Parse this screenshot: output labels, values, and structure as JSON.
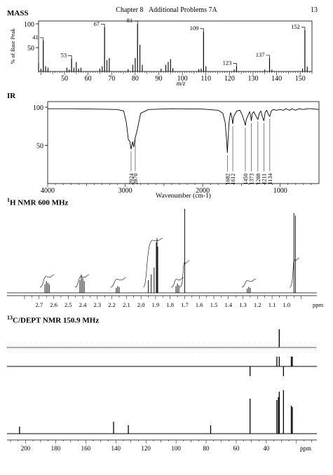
{
  "header": {
    "chapter": "Chapter 8",
    "title": "Additional Problems 7A",
    "page": "13"
  },
  "sections": {
    "mass": "MASS",
    "ir": "IR",
    "hnmr_sup": "1",
    "hnmr": "H NMR 600 MHz",
    "cnmr_sup": "13",
    "cnmr": "C/DEPT NMR 150.9 MHz"
  },
  "chart_data": [
    {
      "type": "bar",
      "name": "mass-spectrum",
      "xlabel": "m/z",
      "ylabel": "% of Base Peak",
      "xlim": [
        39,
        155
      ],
      "ylim": [
        0,
        100
      ],
      "xticks": [
        50,
        60,
        70,
        80,
        90,
        100,
        110,
        120,
        130,
        140,
        150
      ],
      "yticks": [
        50,
        100
      ],
      "labeled_peaks": [
        {
          "x": 41,
          "y": 65,
          "label": "41"
        },
        {
          "x": 53,
          "y": 27,
          "label": "53"
        },
        {
          "x": 67,
          "y": 93,
          "label": "67"
        },
        {
          "x": 81,
          "y": 100,
          "label": "81"
        },
        {
          "x": 109,
          "y": 84,
          "label": "109"
        },
        {
          "x": 123,
          "y": 11,
          "label": "123"
        },
        {
          "x": 137,
          "y": 28,
          "label": "137"
        },
        {
          "x": 152,
          "y": 87,
          "label": "152"
        }
      ],
      "minor_peaks": [
        [
          39,
          18
        ],
        [
          40,
          6
        ],
        [
          42,
          11
        ],
        [
          43,
          8
        ],
        [
          51,
          8
        ],
        [
          52,
          4
        ],
        [
          54,
          8
        ],
        [
          55,
          20
        ],
        [
          56,
          6
        ],
        [
          57,
          8
        ],
        [
          65,
          6
        ],
        [
          66,
          11
        ],
        [
          68,
          24
        ],
        [
          69,
          28
        ],
        [
          77,
          5
        ],
        [
          79,
          14
        ],
        [
          80,
          28
        ],
        [
          82,
          56
        ],
        [
          83,
          14
        ],
        [
          91,
          6
        ],
        [
          93,
          14
        ],
        [
          94,
          20
        ],
        [
          95,
          26
        ],
        [
          96,
          7
        ],
        [
          107,
          5
        ],
        [
          108,
          6
        ],
        [
          110,
          11
        ],
        [
          122,
          4
        ],
        [
          135,
          4
        ],
        [
          138,
          4
        ],
        [
          151,
          6
        ],
        [
          153,
          10
        ]
      ]
    },
    {
      "type": "line",
      "name": "ir-spectrum",
      "xlabel": "Wavenumber (cm-1)",
      "xlim": [
        4000,
        500
      ],
      "ylim": [
        0,
        100
      ],
      "xticks": [
        4000,
        3000,
        2000,
        1000
      ],
      "yticks": [
        50,
        100
      ],
      "peak_labels": [
        "2924",
        "2870",
        "1682",
        "1612",
        "1450",
        "1373",
        "1288",
        "1211",
        "1134"
      ],
      "points": [
        [
          4000,
          98
        ],
        [
          3700,
          98
        ],
        [
          3400,
          97.5
        ],
        [
          3100,
          97
        ],
        [
          3020,
          95
        ],
        [
          2985,
          80
        ],
        [
          2960,
          58
        ],
        [
          2940,
          55
        ],
        [
          2924,
          45
        ],
        [
          2905,
          55
        ],
        [
          2890,
          48
        ],
        [
          2870,
          60
        ],
        [
          2850,
          68
        ],
        [
          2800,
          92
        ],
        [
          2700,
          97
        ],
        [
          2400,
          98
        ],
        [
          2000,
          97.5
        ],
        [
          1800,
          96
        ],
        [
          1740,
          92
        ],
        [
          1710,
          80
        ],
        [
          1690,
          55
        ],
        [
          1682,
          40
        ],
        [
          1674,
          55
        ],
        [
          1660,
          80
        ],
        [
          1640,
          93
        ],
        [
          1625,
          88
        ],
        [
          1612,
          78
        ],
        [
          1600,
          88
        ],
        [
          1560,
          95
        ],
        [
          1520,
          96
        ],
        [
          1490,
          90
        ],
        [
          1465,
          82
        ],
        [
          1450,
          76
        ],
        [
          1438,
          84
        ],
        [
          1420,
          88
        ],
        [
          1395,
          94
        ],
        [
          1380,
          88
        ],
        [
          1373,
          82
        ],
        [
          1360,
          92
        ],
        [
          1340,
          94
        ],
        [
          1320,
          90
        ],
        [
          1300,
          86
        ],
        [
          1288,
          84
        ],
        [
          1270,
          92
        ],
        [
          1250,
          95
        ],
        [
          1232,
          88
        ],
        [
          1211,
          82
        ],
        [
          1195,
          93
        ],
        [
          1175,
          96
        ],
        [
          1150,
          90
        ],
        [
          1134,
          88
        ],
        [
          1115,
          95
        ],
        [
          1090,
          97
        ],
        [
          1050,
          96
        ],
        [
          1000,
          97
        ],
        [
          960,
          96
        ],
        [
          930,
          98
        ],
        [
          880,
          96
        ],
        [
          850,
          98
        ],
        [
          800,
          96
        ],
        [
          760,
          98
        ],
        [
          700,
          97
        ],
        [
          650,
          98
        ],
        [
          600,
          98
        ],
        [
          500,
          97
        ]
      ]
    },
    {
      "type": "line",
      "name": "h-nmr",
      "xlabel": "ppm",
      "xlim": [
        2.8,
        0.85
      ],
      "xticks": [
        2.7,
        2.6,
        2.5,
        2.4,
        2.3,
        2.2,
        2.1,
        2.0,
        1.9,
        1.8,
        1.7,
        1.6,
        1.5,
        1.4,
        1.3,
        1.2,
        1.1,
        1.0
      ],
      "peaks": [
        [
          2.66,
          10
        ],
        [
          2.65,
          14
        ],
        [
          2.64,
          12
        ],
        [
          2.63,
          10
        ],
        [
          2.42,
          15
        ],
        [
          2.41,
          22
        ],
        [
          2.4,
          18
        ],
        [
          2.39,
          14
        ],
        [
          2.17,
          6
        ],
        [
          2.16,
          8
        ],
        [
          2.15,
          7
        ],
        [
          1.95,
          15
        ],
        [
          1.93,
          22
        ],
        [
          1.91,
          30
        ],
        [
          1.895,
          60
        ],
        [
          1.89,
          65
        ],
        [
          1.885,
          55
        ],
        [
          1.76,
          8
        ],
        [
          1.75,
          11
        ],
        [
          1.74,
          9
        ],
        [
          1.7,
          100
        ],
        [
          1.27,
          5
        ],
        [
          1.26,
          7
        ],
        [
          1.25,
          6
        ],
        [
          0.95,
          95
        ],
        [
          0.94,
          92
        ]
      ]
    },
    {
      "type": "bar",
      "name": "c13-dept",
      "xlabel": "ppm",
      "xlim": [
        210,
        5
      ],
      "xticks": [
        200,
        180,
        160,
        140,
        120,
        100,
        80,
        60,
        40
      ],
      "traces": {
        "dept90": [
          [
            31.4,
            100
          ]
        ],
        "dept135": [
          [
            50.8,
            -1
          ],
          [
            33.0,
            1
          ],
          [
            31.4,
            1
          ],
          [
            28.6,
            -1
          ],
          [
            23.4,
            1
          ],
          [
            22.7,
            1
          ]
        ],
        "broadband": [
          [
            204.0,
            10
          ],
          [
            141.5,
            17
          ],
          [
            131.7,
            12
          ],
          [
            77.0,
            12
          ],
          [
            50.8,
            50
          ],
          [
            33.0,
            48
          ],
          [
            32.0,
            52
          ],
          [
            31.4,
            60
          ],
          [
            28.6,
            62
          ],
          [
            23.4,
            40
          ],
          [
            22.7,
            38
          ]
        ]
      }
    }
  ]
}
